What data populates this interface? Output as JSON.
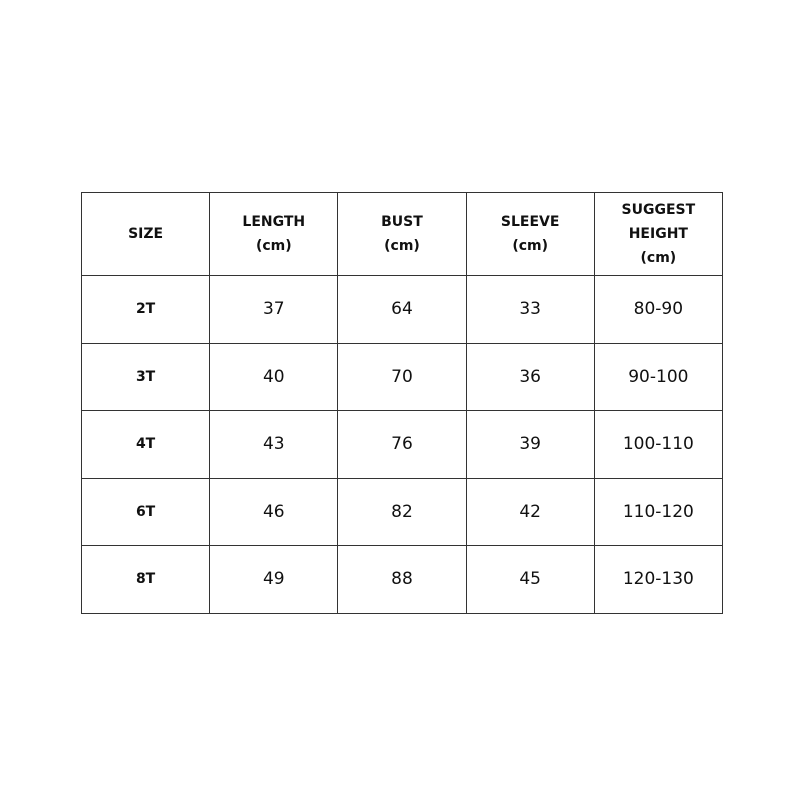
{
  "table": {
    "headers": [
      [
        "SIZE"
      ],
      [
        "LENGTH",
        "(cm)"
      ],
      [
        "BUST",
        "(cm)"
      ],
      [
        "SLEEVE",
        "(cm)"
      ],
      [
        "SUGGEST",
        "HEIGHT",
        "(cm)"
      ]
    ],
    "rows": [
      [
        "2T",
        "37",
        "64",
        "33",
        "80-90"
      ],
      [
        "3T",
        "40",
        "70",
        "36",
        "90-100"
      ],
      [
        "4T",
        "43",
        "76",
        "39",
        "100-110"
      ],
      [
        "6T",
        "46",
        "82",
        "42",
        "110-120"
      ],
      [
        "8T",
        "49",
        "88",
        "45",
        "120-130"
      ]
    ]
  }
}
